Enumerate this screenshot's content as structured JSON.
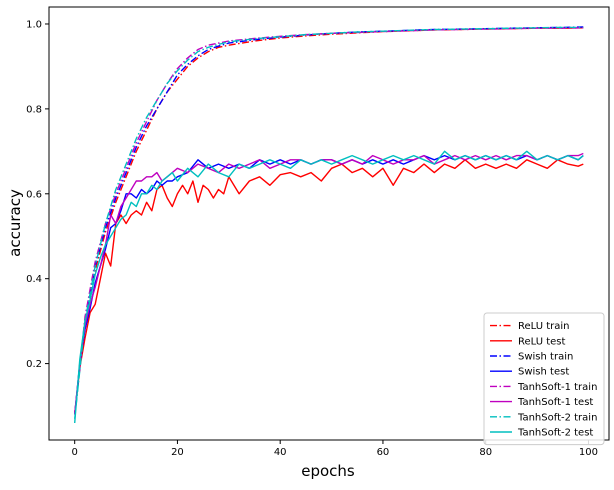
{
  "chart_data": {
    "type": "line",
    "xlabel": "epochs",
    "ylabel": "accuracy",
    "xlim": [
      -5,
      104
    ],
    "ylim": [
      0.02,
      1.04
    ],
    "xticks": [
      0,
      20,
      40,
      60,
      80,
      100
    ],
    "yticks": [
      0.2,
      0.4,
      0.6,
      0.8,
      1.0
    ],
    "xtick_labels": [
      "0",
      "20",
      "40",
      "60",
      "80",
      "100"
    ],
    "ytick_labels": [
      "0.2",
      "0.4",
      "0.6",
      "0.8",
      "1.0"
    ],
    "grid": false,
    "legend_position": "lower-right",
    "series": [
      {
        "name": "ReLU train",
        "color": "#ff0000",
        "style": "dashdot",
        "x": [
          0,
          2,
          4,
          6,
          8,
          10,
          12,
          14,
          16,
          18,
          20,
          22,
          24,
          26,
          28,
          30,
          35,
          40,
          45,
          50,
          55,
          60,
          65,
          70,
          75,
          80,
          85,
          90,
          95,
          99
        ],
        "y": [
          0.08,
          0.3,
          0.42,
          0.51,
          0.58,
          0.64,
          0.7,
          0.75,
          0.8,
          0.84,
          0.87,
          0.9,
          0.92,
          0.935,
          0.945,
          0.95,
          0.96,
          0.967,
          0.972,
          0.976,
          0.979,
          0.982,
          0.984,
          0.986,
          0.987,
          0.988,
          0.989,
          0.99,
          0.99,
          0.991
        ]
      },
      {
        "name": "ReLU test",
        "color": "#ff0000",
        "style": "solid",
        "x": [
          0,
          1,
          2,
          3,
          4,
          5,
          6,
          7,
          8,
          9,
          10,
          11,
          12,
          13,
          14,
          15,
          16,
          17,
          18,
          19,
          20,
          21,
          22,
          23,
          24,
          25,
          26,
          27,
          28,
          29,
          30,
          32,
          34,
          36,
          38,
          40,
          42,
          44,
          46,
          48,
          50,
          52,
          54,
          56,
          58,
          60,
          62,
          64,
          66,
          68,
          70,
          72,
          74,
          76,
          78,
          80,
          82,
          84,
          86,
          88,
          90,
          92,
          94,
          96,
          98,
          99
        ],
        "y": [
          0.08,
          0.19,
          0.26,
          0.32,
          0.34,
          0.4,
          0.46,
          0.43,
          0.53,
          0.55,
          0.53,
          0.55,
          0.56,
          0.55,
          0.58,
          0.56,
          0.61,
          0.62,
          0.59,
          0.57,
          0.6,
          0.62,
          0.6,
          0.63,
          0.58,
          0.62,
          0.61,
          0.59,
          0.61,
          0.6,
          0.64,
          0.6,
          0.63,
          0.64,
          0.62,
          0.645,
          0.65,
          0.64,
          0.65,
          0.63,
          0.66,
          0.67,
          0.65,
          0.66,
          0.64,
          0.66,
          0.62,
          0.66,
          0.65,
          0.67,
          0.65,
          0.67,
          0.66,
          0.68,
          0.66,
          0.67,
          0.66,
          0.67,
          0.66,
          0.68,
          0.67,
          0.66,
          0.68,
          0.67,
          0.665,
          0.67
        ]
      },
      {
        "name": "Swish train",
        "color": "#0000ff",
        "style": "dashdot",
        "x": [
          0,
          2,
          4,
          6,
          8,
          10,
          12,
          14,
          16,
          18,
          20,
          22,
          24,
          26,
          28,
          30,
          35,
          40,
          45,
          50,
          55,
          60,
          65,
          70,
          75,
          80,
          85,
          90,
          95,
          99
        ],
        "y": [
          0.08,
          0.3,
          0.43,
          0.52,
          0.59,
          0.65,
          0.71,
          0.76,
          0.8,
          0.84,
          0.88,
          0.905,
          0.925,
          0.94,
          0.948,
          0.955,
          0.963,
          0.969,
          0.974,
          0.978,
          0.981,
          0.983,
          0.985,
          0.987,
          0.988,
          0.989,
          0.99,
          0.991,
          0.992,
          0.993
        ]
      },
      {
        "name": "Swish test",
        "color": "#0000ff",
        "style": "solid",
        "x": [
          0,
          1,
          2,
          3,
          4,
          5,
          6,
          7,
          8,
          9,
          10,
          11,
          12,
          13,
          14,
          15,
          16,
          17,
          18,
          19,
          20,
          22,
          24,
          26,
          28,
          30,
          32,
          34,
          36,
          38,
          40,
          42,
          44,
          46,
          48,
          50,
          52,
          54,
          56,
          58,
          60,
          62,
          64,
          66,
          68,
          70,
          72,
          74,
          76,
          78,
          80,
          82,
          84,
          86,
          88,
          90,
          92,
          94,
          96,
          98,
          99
        ],
        "y": [
          0.08,
          0.2,
          0.28,
          0.33,
          0.39,
          0.43,
          0.47,
          0.52,
          0.53,
          0.56,
          0.6,
          0.6,
          0.59,
          0.61,
          0.6,
          0.61,
          0.63,
          0.62,
          0.63,
          0.63,
          0.64,
          0.65,
          0.68,
          0.66,
          0.67,
          0.66,
          0.67,
          0.66,
          0.68,
          0.67,
          0.68,
          0.67,
          0.68,
          0.67,
          0.68,
          0.68,
          0.67,
          0.68,
          0.67,
          0.68,
          0.67,
          0.68,
          0.67,
          0.68,
          0.69,
          0.68,
          0.69,
          0.68,
          0.69,
          0.68,
          0.69,
          0.68,
          0.69,
          0.68,
          0.69,
          0.68,
          0.69,
          0.68,
          0.69,
          0.68,
          0.69
        ]
      },
      {
        "name": "TanhSoft-1 train",
        "color": "#bf00bf",
        "style": "dashdot",
        "x": [
          0,
          2,
          4,
          6,
          8,
          10,
          12,
          14,
          16,
          18,
          20,
          22,
          24,
          26,
          28,
          30,
          35,
          40,
          45,
          50,
          55,
          60,
          65,
          70,
          75,
          80,
          85,
          90,
          95,
          99
        ],
        "y": [
          0.08,
          0.31,
          0.44,
          0.53,
          0.6,
          0.66,
          0.72,
          0.77,
          0.82,
          0.86,
          0.895,
          0.92,
          0.94,
          0.95,
          0.955,
          0.96,
          0.966,
          0.971,
          0.975,
          0.978,
          0.98,
          0.982,
          0.984,
          0.986,
          0.987,
          0.988,
          0.989,
          0.99,
          0.99,
          0.991
        ]
      },
      {
        "name": "TanhSoft-1 test",
        "color": "#bf00bf",
        "style": "solid",
        "x": [
          0,
          1,
          2,
          3,
          4,
          5,
          6,
          7,
          8,
          9,
          10,
          11,
          12,
          13,
          14,
          15,
          16,
          17,
          18,
          19,
          20,
          22,
          24,
          26,
          28,
          30,
          32,
          34,
          36,
          38,
          40,
          42,
          44,
          46,
          48,
          50,
          52,
          54,
          56,
          58,
          60,
          62,
          64,
          66,
          68,
          70,
          72,
          74,
          76,
          78,
          80,
          82,
          84,
          86,
          88,
          90,
          92,
          94,
          96,
          98,
          99
        ],
        "y": [
          0.08,
          0.2,
          0.29,
          0.34,
          0.38,
          0.43,
          0.48,
          0.55,
          0.53,
          0.57,
          0.59,
          0.61,
          0.63,
          0.63,
          0.64,
          0.64,
          0.65,
          0.63,
          0.64,
          0.65,
          0.66,
          0.65,
          0.67,
          0.66,
          0.65,
          0.67,
          0.66,
          0.67,
          0.68,
          0.66,
          0.67,
          0.68,
          0.68,
          0.67,
          0.68,
          0.68,
          0.67,
          0.68,
          0.67,
          0.69,
          0.68,
          0.67,
          0.68,
          0.68,
          0.69,
          0.67,
          0.68,
          0.69,
          0.68,
          0.69,
          0.68,
          0.69,
          0.68,
          0.69,
          0.69,
          0.68,
          0.69,
          0.68,
          0.69,
          0.69,
          0.695
        ]
      },
      {
        "name": "TanhSoft-2 train",
        "color": "#00bfbf",
        "style": "dashdot",
        "x": [
          0,
          2,
          4,
          6,
          8,
          10,
          12,
          14,
          16,
          18,
          20,
          22,
          24,
          26,
          28,
          30,
          35,
          40,
          45,
          50,
          55,
          60,
          65,
          70,
          75,
          80,
          85,
          90,
          95,
          99
        ],
        "y": [
          0.07,
          0.3,
          0.43,
          0.53,
          0.61,
          0.67,
          0.73,
          0.78,
          0.82,
          0.86,
          0.89,
          0.915,
          0.935,
          0.945,
          0.952,
          0.958,
          0.965,
          0.97,
          0.975,
          0.978,
          0.981,
          0.983,
          0.985,
          0.987,
          0.988,
          0.989,
          0.99,
          0.991,
          0.992,
          0.992
        ]
      },
      {
        "name": "TanhSoft-2 test",
        "color": "#00bfbf",
        "style": "solid",
        "x": [
          0,
          1,
          2,
          3,
          4,
          5,
          6,
          7,
          8,
          9,
          10,
          11,
          12,
          13,
          14,
          15,
          16,
          17,
          18,
          19,
          20,
          22,
          24,
          26,
          28,
          30,
          32,
          34,
          36,
          38,
          40,
          42,
          44,
          46,
          48,
          50,
          52,
          54,
          56,
          58,
          60,
          62,
          64,
          66,
          68,
          70,
          72,
          74,
          76,
          78,
          80,
          82,
          84,
          86,
          88,
          90,
          92,
          94,
          96,
          98,
          99
        ],
        "y": [
          0.06,
          0.21,
          0.3,
          0.35,
          0.41,
          0.45,
          0.48,
          0.5,
          0.52,
          0.54,
          0.55,
          0.58,
          0.57,
          0.6,
          0.6,
          0.62,
          0.61,
          0.63,
          0.64,
          0.65,
          0.63,
          0.66,
          0.64,
          0.67,
          0.65,
          0.64,
          0.67,
          0.66,
          0.67,
          0.68,
          0.67,
          0.66,
          0.68,
          0.67,
          0.68,
          0.67,
          0.68,
          0.69,
          0.68,
          0.67,
          0.68,
          0.69,
          0.68,
          0.69,
          0.68,
          0.67,
          0.7,
          0.68,
          0.69,
          0.68,
          0.69,
          0.68,
          0.69,
          0.68,
          0.7,
          0.68,
          0.69,
          0.68,
          0.69,
          0.68,
          0.69
        ]
      }
    ]
  }
}
